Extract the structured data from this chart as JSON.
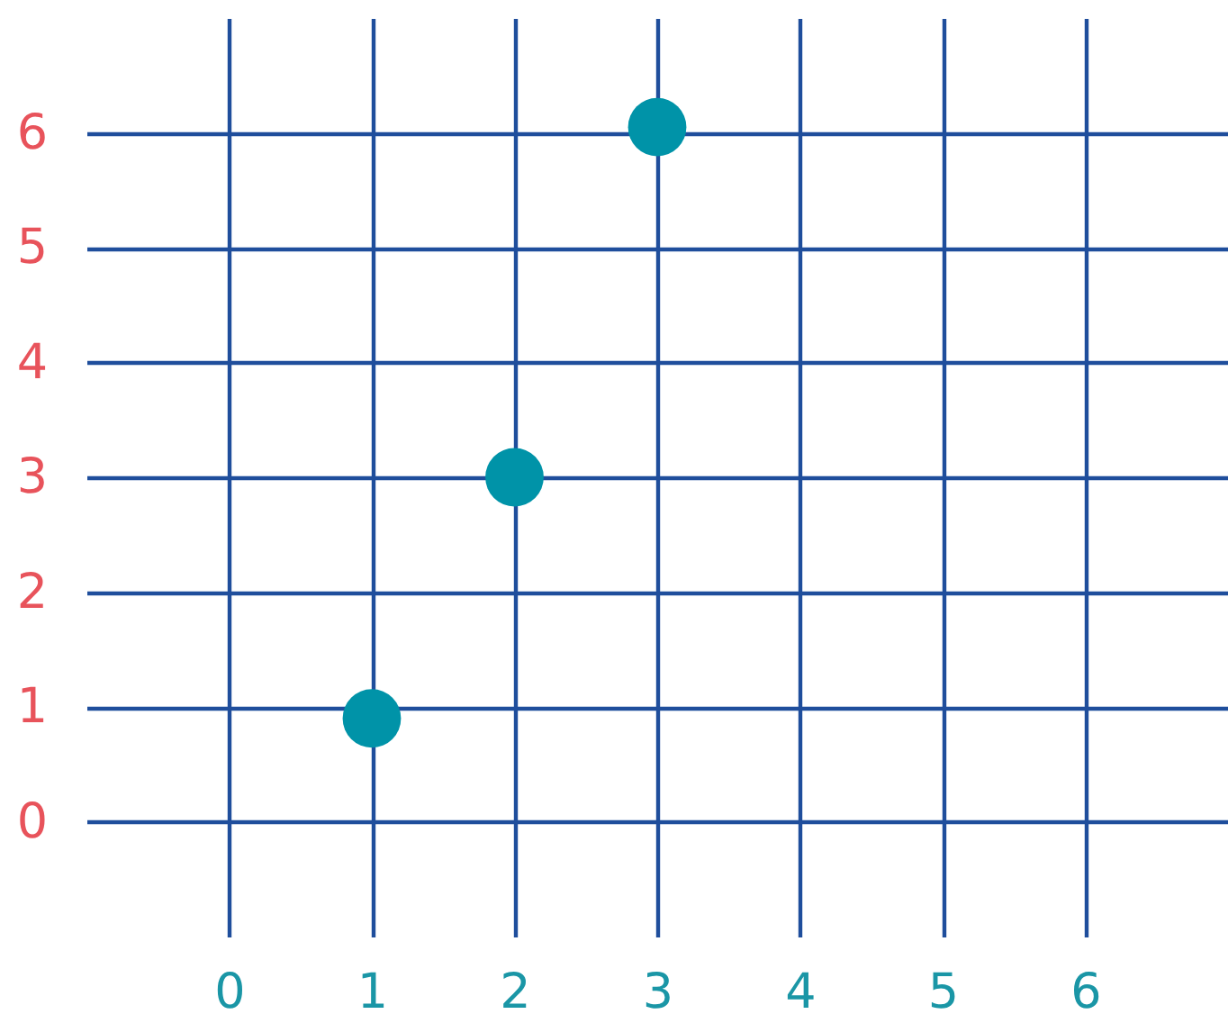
{
  "chart_data": {
    "type": "scatter",
    "x": [
      1,
      2,
      3
    ],
    "values": [
      0.9,
      3,
      6.05
    ],
    "color": "#0093a8",
    "xlim": [
      -1,
      7
    ],
    "ylim": [
      -1,
      7
    ],
    "xticks": [
      0,
      1,
      2,
      3,
      4,
      5,
      6
    ],
    "yticks": [
      0,
      1,
      2,
      3,
      4,
      5,
      6
    ],
    "grid": true,
    "marker": "circle"
  }
}
